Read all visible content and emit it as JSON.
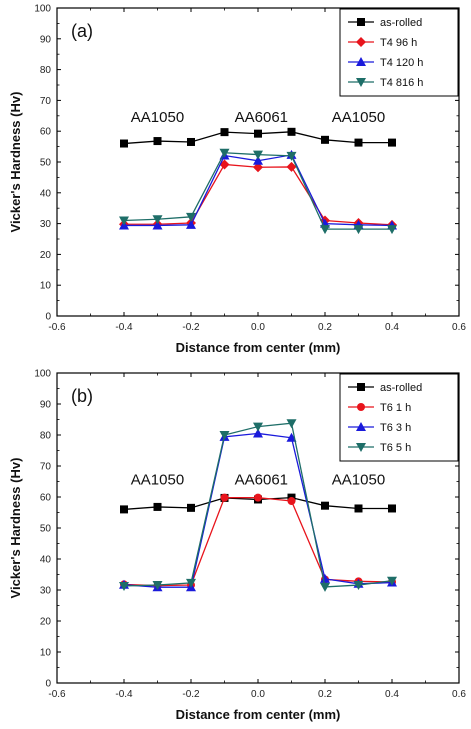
{
  "chart_data": [
    {
      "type": "line",
      "panel_label": "(a)",
      "xlabel": "Distance from center (mm)",
      "ylabel": "Vicker's Hardness (Hv)",
      "xlim": [
        -0.6,
        0.6
      ],
      "ylim": [
        0,
        100
      ],
      "xticks": [
        "-0.6",
        "-0.4",
        "-0.2",
        "0.0",
        "0.2",
        "0.4",
        "0.6"
      ],
      "yticks": [
        "0",
        "10",
        "20",
        "30",
        "40",
        "50",
        "60",
        "70",
        "80",
        "90",
        "100"
      ],
      "legend_position": "top-right",
      "grid": false,
      "x": [
        -0.4,
        -0.3,
        -0.2,
        -0.1,
        0.0,
        0.1,
        0.2,
        0.3,
        0.4
      ],
      "series": [
        {
          "name": "as-rolled",
          "color": "#000000",
          "marker": "square",
          "values": [
            56,
            56.8,
            56.5,
            59.7,
            59.2,
            59.8,
            57.2,
            56.3,
            56.3
          ]
        },
        {
          "name": "T4 96 h",
          "color": "#e8141c",
          "marker": "diamond",
          "values": [
            29.8,
            29.8,
            30.2,
            49.2,
            48.3,
            48.4,
            31,
            30.2,
            29.6
          ]
        },
        {
          "name": "T4 120 h",
          "color": "#1a1adb",
          "marker": "triangle-up",
          "values": [
            29.4,
            29.4,
            29.6,
            52.1,
            50.4,
            52.3,
            30,
            29.6,
            29.4
          ]
        },
        {
          "name": "T4 816 h",
          "color": "#1e6e68",
          "marker": "triangle-down",
          "values": [
            31,
            31.4,
            32.2,
            53,
            52.4,
            52,
            28.2,
            28.2,
            28.2
          ]
        }
      ],
      "annotations": [
        {
          "text": "AA1050",
          "x": -0.3,
          "y": 63
        },
        {
          "text": "AA6061",
          "x": 0.01,
          "y": 63
        },
        {
          "text": "AA1050",
          "x": 0.3,
          "y": 63
        }
      ]
    },
    {
      "type": "line",
      "panel_label": "(b)",
      "xlabel": "Distance from center (mm)",
      "ylabel": "Vicker's Hardness (Hv)",
      "xlim": [
        -0.6,
        0.6
      ],
      "ylim": [
        0,
        100
      ],
      "xticks": [
        "-0.6",
        "-0.4",
        "-0.2",
        "0.0",
        "0.2",
        "0.4",
        "0.6"
      ],
      "yticks": [
        "0",
        "10",
        "20",
        "30",
        "40",
        "50",
        "60",
        "70",
        "80",
        "90",
        "100"
      ],
      "legend_position": "top-right",
      "grid": false,
      "x": [
        -0.4,
        -0.3,
        -0.2,
        -0.1,
        0.0,
        0.1,
        0.2,
        0.3,
        0.4
      ],
      "series": [
        {
          "name": "as-rolled",
          "color": "#000000",
          "marker": "square",
          "values": [
            56,
            56.8,
            56.5,
            59.7,
            59.2,
            59.8,
            57.2,
            56.3,
            56.3
          ]
        },
        {
          "name": "T6 1 h",
          "color": "#e8141c",
          "marker": "circle",
          "values": [
            31.8,
            31.4,
            31.6,
            59.8,
            59.8,
            58.7,
            33.4,
            32.8,
            32.6
          ]
        },
        {
          "name": "T6 3 h",
          "color": "#1a1adb",
          "marker": "triangle-up",
          "values": [
            31.7,
            30.9,
            30.9,
            79.4,
            80.5,
            79.1,
            33.6,
            32,
            32.4
          ]
        },
        {
          "name": "T6 5 h",
          "color": "#1e6e68",
          "marker": "triangle-down",
          "values": [
            31.3,
            31.6,
            32.3,
            80,
            82.7,
            83.8,
            31,
            31.6,
            33
          ]
        }
      ],
      "annotations": [
        {
          "text": "AA1050",
          "x": -0.3,
          "y": 64
        },
        {
          "text": "AA6061",
          "x": 0.01,
          "y": 64
        },
        {
          "text": "AA1050",
          "x": 0.3,
          "y": 64
        }
      ]
    }
  ]
}
